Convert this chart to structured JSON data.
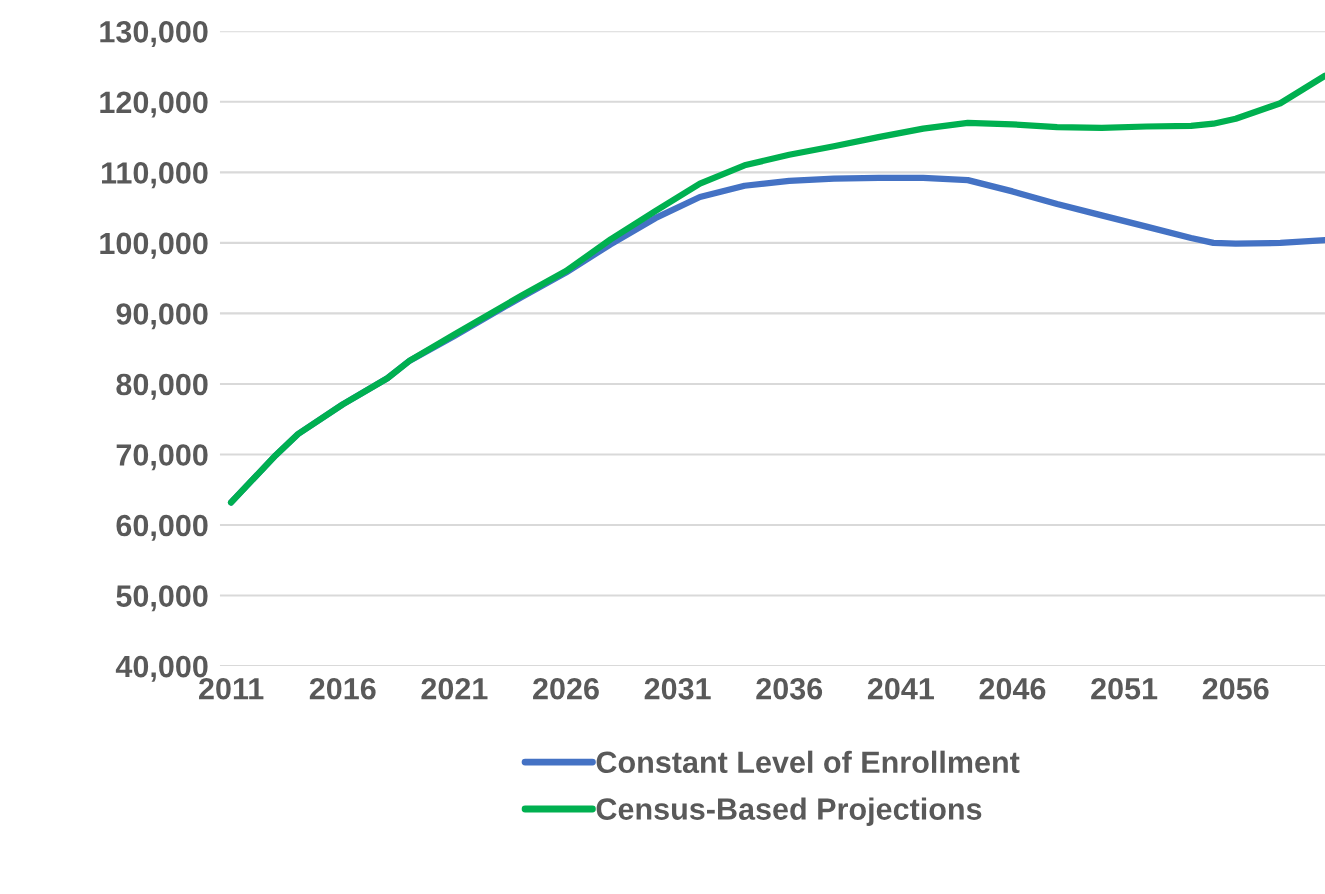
{
  "chart_data": {
    "type": "line",
    "x": [
      2011,
      2013,
      2014,
      2016,
      2018,
      2019,
      2021,
      2024,
      2026,
      2028,
      2030,
      2032,
      2034,
      2036,
      2038,
      2040,
      2042,
      2044,
      2046,
      2048,
      2050,
      2052,
      2054,
      2055,
      2056,
      2058,
      2060
    ],
    "series": [
      {
        "name": "Constant Level of Enrollment",
        "color": "#4472c4",
        "values": [
          63200,
          69900,
          72900,
          77100,
          80800,
          83300,
          86800,
          92300,
          95800,
          99800,
          103500,
          106500,
          108100,
          108800,
          109100,
          109200,
          109200,
          108900,
          107300,
          105500,
          103900,
          102300,
          100700,
          100000,
          99900,
          100000,
          100400
        ]
      },
      {
        "name": "Census-Based Projections",
        "color": "#00b050",
        "values": [
          63200,
          69900,
          72900,
          77100,
          80800,
          83300,
          87000,
          92500,
          96000,
          100500,
          104500,
          108400,
          111000,
          112500,
          113700,
          115000,
          116200,
          117000,
          116800,
          116400,
          116300,
          116500,
          116600,
          116900,
          117600,
          119800,
          123700
        ]
      }
    ],
    "xlim": [
      2010.5,
      2060
    ],
    "xticks": [
      2011,
      2016,
      2021,
      2026,
      2031,
      2036,
      2041,
      2046,
      2051,
      2056
    ],
    "ylim": [
      40000,
      130000
    ],
    "yticks": [
      {
        "value": 40000,
        "label": "40,000"
      },
      {
        "value": 50000,
        "label": "50,000"
      },
      {
        "value": 60000,
        "label": "60,000"
      },
      {
        "value": 70000,
        "label": "70,000"
      },
      {
        "value": 80000,
        "label": "80,000"
      },
      {
        "value": 90000,
        "label": "90,000"
      },
      {
        "value": 100000,
        "label": "100,000"
      },
      {
        "value": 110000,
        "label": "110,000"
      },
      {
        "value": 120000,
        "label": "120,000"
      },
      {
        "value": 130000,
        "label": "130,000"
      }
    ],
    "grid": "y",
    "legend": "bottom"
  }
}
